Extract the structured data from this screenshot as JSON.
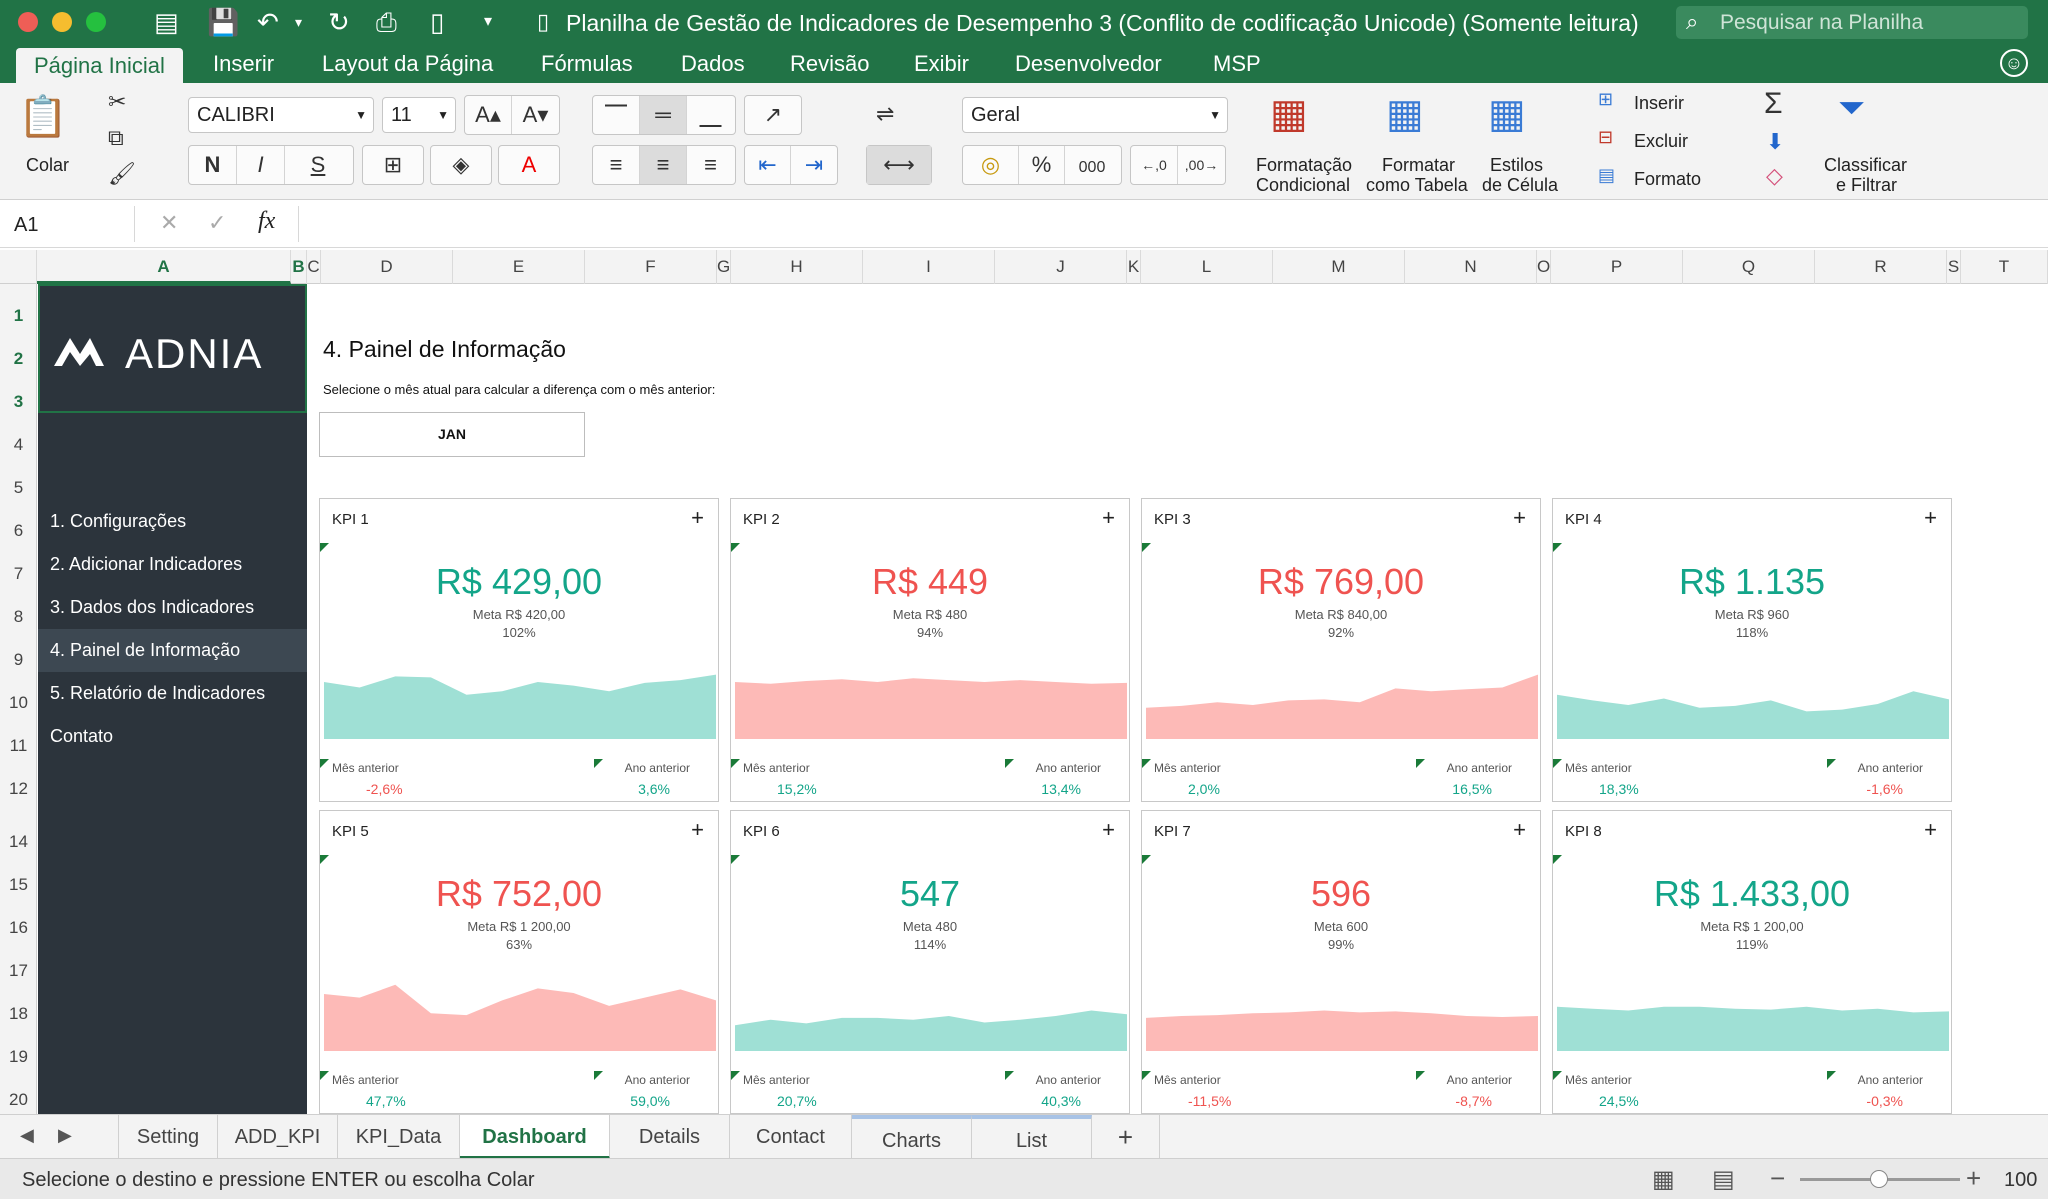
{
  "window": {
    "title": "Planilha de Gestão de Indicadores de Desempenho 3 (Conflito de codificação Unicode)  (Somente leitura)",
    "search_placeholder": "Pesquisar na Planilha",
    "traffic_colors": [
      "#ee5e56",
      "#f5bd2f",
      "#25c03f"
    ]
  },
  "ribbon_tabs": [
    "Página Inicial",
    "Inserir",
    "Layout da Página",
    "Fórmulas",
    "Dados",
    "Revisão",
    "Exibir",
    "Desenvolvedor",
    "MSP"
  ],
  "ribbon": {
    "paste_label": "Colar",
    "font_name": "CALIBRI",
    "font_size": "11",
    "bold": "N",
    "italic": "I",
    "underline": "S",
    "number_format": "Geral",
    "percent": "%",
    "thousands": "000",
    "dec_increase": "←,0\n,00",
    "dec_decrease": ",00\n→,0",
    "cond_format_1": "Formatação",
    "cond_format_2": "Condicional",
    "format_table_1": "Formatar",
    "format_table_2": "como Tabela",
    "cell_styles_1": "Estilos",
    "cell_styles_2": "de Célula",
    "insert_label": "Inserir",
    "delete_label": "Excluir",
    "format_label": "Formato",
    "sort_1": "Classificar",
    "sort_2": "e Filtrar"
  },
  "formula_bar": {
    "cell_ref": "A1",
    "fx": "fx"
  },
  "columns": [
    "A",
    "B",
    "C",
    "D",
    "E",
    "F",
    "G",
    "H",
    "I",
    "J",
    "K",
    "L",
    "M",
    "N",
    "O",
    "P",
    "Q",
    "R",
    "S",
    "T"
  ],
  "rows": [
    "1",
    "2",
    "3",
    "4",
    "5",
    "6",
    "7",
    "8",
    "9",
    "10",
    "11",
    "12",
    "14",
    "15",
    "16",
    "17",
    "18",
    "19",
    "20"
  ],
  "sidebar": {
    "logo": "ADNIA",
    "items": [
      "1. Configurações",
      "2. Adicionar Indicadores",
      "3. Dados dos Indicadores",
      "4. Painel de Informação",
      "5. Relatório de Indicadores",
      "Contato"
    ],
    "active_index": 3
  },
  "dashboard": {
    "title": "4. Painel de Informação",
    "subtitle": "Selecione o mês atual para calcular a diferença com o mês anterior:",
    "month": "JAN",
    "prev_month_label": "Mês anterior",
    "prev_year_label": "Ano anterior",
    "kpis": [
      {
        "name": "KPI 1",
        "value": "R$ 429,00",
        "meta": "Meta R$ 420,00",
        "pct": "102%",
        "status": "pos",
        "prev_month": "-2,6%",
        "pm_status": "neg",
        "prev_year": "3,6%",
        "py_status": "pos",
        "spark": [
          0.62,
          0.56,
          0.68,
          0.67,
          0.48,
          0.52,
          0.62,
          0.58,
          0.52,
          0.61,
          0.64,
          0.7
        ]
      },
      {
        "name": "KPI 2",
        "value": "R$ 449",
        "meta": "Meta R$ 480",
        "pct": "94%",
        "status": "neg",
        "prev_month": "15,2%",
        "pm_status": "pos",
        "prev_year": "13,4%",
        "py_status": "pos",
        "spark": [
          0.62,
          0.6,
          0.63,
          0.65,
          0.62,
          0.66,
          0.64,
          0.62,
          0.64,
          0.62,
          0.6,
          0.61
        ]
      },
      {
        "name": "KPI 3",
        "value": "R$ 769,00",
        "meta": "Meta R$ 840,00",
        "pct": "92%",
        "status": "neg",
        "prev_month": "2,0%",
        "pm_status": "pos",
        "prev_year": "16,5%",
        "py_status": "pos",
        "spark": [
          0.34,
          0.36,
          0.4,
          0.37,
          0.42,
          0.43,
          0.4,
          0.55,
          0.52,
          0.54,
          0.56,
          0.7
        ]
      },
      {
        "name": "KPI 4",
        "value": "R$ 1.135",
        "meta": "Meta R$ 960",
        "pct": "118%",
        "status": "pos",
        "prev_month": "18,3%",
        "pm_status": "pos",
        "prev_year": "-1,6%",
        "py_status": "neg",
        "spark": [
          0.48,
          0.42,
          0.37,
          0.44,
          0.34,
          0.36,
          0.42,
          0.3,
          0.32,
          0.38,
          0.52,
          0.43
        ]
      },
      {
        "name": "KPI 5",
        "value": "R$ 752,00",
        "meta": "Meta R$ 1 200,00",
        "pct": "63%",
        "status": "neg",
        "prev_month": "47,7%",
        "pm_status": "pos",
        "prev_year": "59,0%",
        "py_status": "pos",
        "spark": [
          0.62,
          0.58,
          0.72,
          0.41,
          0.39,
          0.55,
          0.68,
          0.63,
          0.49,
          0.58,
          0.67,
          0.55
        ]
      },
      {
        "name": "KPI 6",
        "value": "547",
        "meta": "Meta 480",
        "pct": "114%",
        "status": "pos",
        "prev_month": "20,7%",
        "pm_status": "pos",
        "prev_year": "40,3%",
        "py_status": "pos",
        "spark": [
          0.28,
          0.34,
          0.3,
          0.36,
          0.36,
          0.34,
          0.38,
          0.31,
          0.34,
          0.38,
          0.44,
          0.4
        ]
      },
      {
        "name": "KPI 7",
        "value": "596",
        "meta": "Meta 600",
        "pct": "99%",
        "status": "neg",
        "prev_month": "-11,5%",
        "pm_status": "neg",
        "prev_year": "-8,7%",
        "py_status": "neg",
        "spark": [
          0.36,
          0.38,
          0.39,
          0.41,
          0.42,
          0.44,
          0.42,
          0.43,
          0.41,
          0.38,
          0.37,
          0.38
        ]
      },
      {
        "name": "KPI 8",
        "value": "R$ 1.433,00",
        "meta": "Meta R$ 1 200,00",
        "pct": "119%",
        "status": "pos",
        "prev_month": "24,5%",
        "pm_status": "pos",
        "prev_year": "-0,3%",
        "py_status": "neg",
        "spark": [
          0.48,
          0.46,
          0.44,
          0.48,
          0.48,
          0.46,
          0.45,
          0.48,
          0.44,
          0.46,
          0.42,
          0.43
        ]
      }
    ]
  },
  "sheet_tabs": [
    "Setting",
    "ADD_KPI",
    "KPI_Data",
    "Dashboard",
    "Details",
    "Contact",
    "Charts",
    "List"
  ],
  "sheet_active": 3,
  "status": {
    "text": "Selecione o destino e pressione ENTER ou escolha Colar",
    "zoom": "100"
  },
  "colors": {
    "green": "#217346",
    "teal": "#13a589",
    "red": "#ef5350",
    "teal_fill": "#9fe0d5",
    "red_fill": "#fdbab7",
    "sidebar": "#2c343c"
  }
}
